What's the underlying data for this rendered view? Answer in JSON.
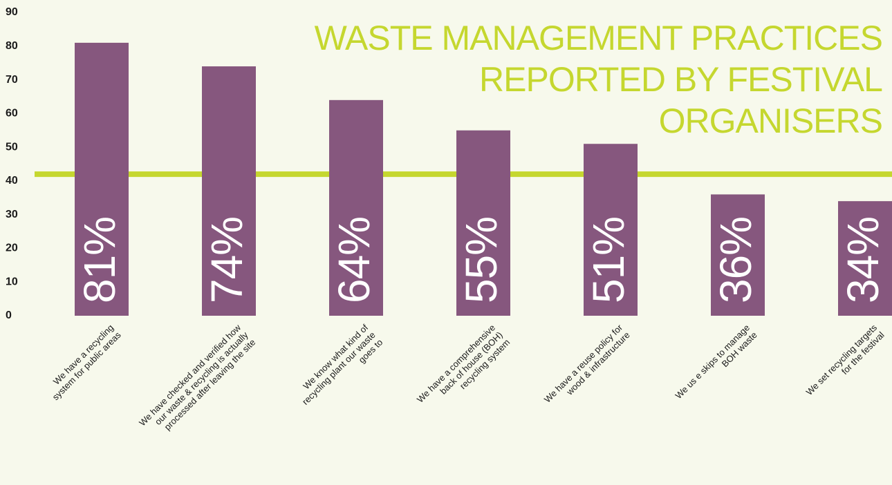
{
  "chart_data": {
    "type": "bar",
    "title": [
      "WASTE MANAGEMENT PRACTICES",
      "REPORTED BY FESTIVAL",
      "ORGANISERS"
    ],
    "categories": [
      [
        "We have a recycling",
        "system for public areas"
      ],
      [
        "We have checked and verified how",
        "our waste & recycling is actually",
        "processed after leaving the site"
      ],
      [
        "We know what kind of",
        "recycling plant our waste",
        "goes to"
      ],
      [
        "We have a comprehensive",
        "back of house (BOH)",
        "recycling system"
      ],
      [
        "We have a reuse policy for",
        "wood & infrastructure"
      ],
      [
        "We us e skips to manage",
        "BOH waste"
      ],
      [
        "We set recycling targets",
        "for the festival"
      ]
    ],
    "values": [
      81,
      74,
      64,
      55,
      51,
      36,
      34
    ],
    "value_labels": [
      "81%",
      "74%",
      "64%",
      "55%",
      "51%",
      "36%",
      "34%"
    ],
    "color": "#86577e",
    "reference_line": {
      "value": 42,
      "color": "#c5d72f"
    },
    "ylim": [
      0,
      90
    ],
    "yticks": [
      0,
      10,
      20,
      30,
      40,
      50,
      60,
      70,
      80,
      90
    ],
    "grid": false
  }
}
